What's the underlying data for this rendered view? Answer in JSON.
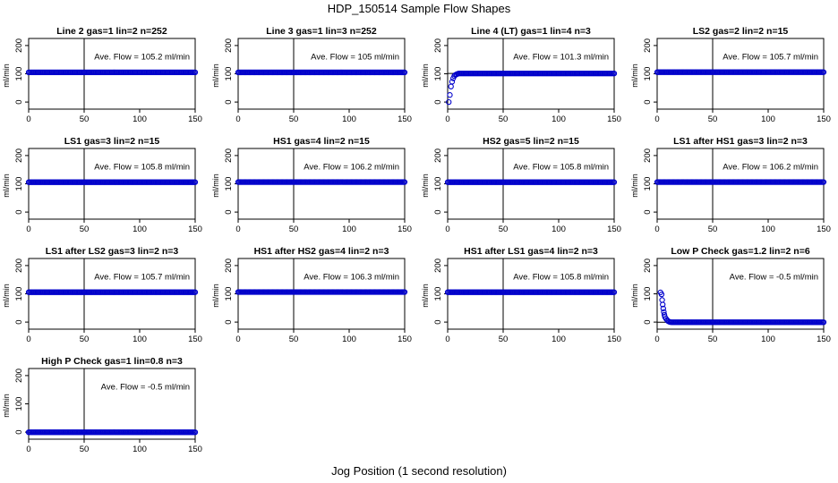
{
  "page": {
    "title": "HDP_150514  Sample Flow Shapes",
    "xlabel": "Jog Position (1 second resolution)"
  },
  "colors": {
    "points": "#0000cc",
    "axes": "#000000"
  },
  "chart_data": [
    {
      "type": "scatter",
      "title": "Line 2 gas=1 lin=2 n=252",
      "ylabel": "ml/min",
      "annotation": "Ave. Flow = 105.2  ml/min",
      "xlim": [
        0,
        150
      ],
      "ylim": [
        -25,
        225
      ],
      "xticks": [
        0,
        50,
        100,
        150
      ],
      "yticks": [
        0,
        100,
        200
      ],
      "vline": 50,
      "hline": 105.2,
      "shape": "flat",
      "level": 105.2
    },
    {
      "type": "scatter",
      "title": "Line 3 gas=1 lin=3 n=252",
      "ylabel": "ml/min",
      "annotation": "Ave. Flow = 105  ml/min",
      "xlim": [
        0,
        150
      ],
      "ylim": [
        -25,
        225
      ],
      "xticks": [
        0,
        50,
        100,
        150
      ],
      "yticks": [
        0,
        100,
        200
      ],
      "vline": 50,
      "hline": 105,
      "shape": "flat",
      "level": 105
    },
    {
      "type": "scatter",
      "title": "Line 4 (LT) gas=1 lin=4 n=3",
      "ylabel": "ml/min",
      "annotation": "Ave. Flow = 101.3  ml/min",
      "xlim": [
        0,
        150
      ],
      "ylim": [
        -25,
        225
      ],
      "xticks": [
        0,
        50,
        100,
        150
      ],
      "yticks": [
        0,
        100,
        200
      ],
      "vline": 50,
      "hline": 101.3,
      "shape": "rise",
      "level": 101.3,
      "rise_points": [
        [
          1,
          0
        ],
        [
          2,
          25
        ],
        [
          3,
          55
        ],
        [
          4,
          72
        ],
        [
          5,
          84
        ],
        [
          6,
          92
        ],
        [
          7,
          96
        ],
        [
          8,
          98
        ],
        [
          9,
          100
        ]
      ]
    },
    {
      "type": "scatter",
      "title": "LS2 gas=2 lin=2 n=15",
      "ylabel": "ml/min",
      "annotation": "Ave. Flow = 105.7  ml/min",
      "xlim": [
        0,
        150
      ],
      "ylim": [
        -25,
        225
      ],
      "xticks": [
        0,
        50,
        100,
        150
      ],
      "yticks": [
        0,
        100,
        200
      ],
      "vline": 50,
      "hline": 105.7,
      "shape": "flat",
      "level": 105.7
    },
    {
      "type": "scatter",
      "title": "LS1 gas=3 lin=2 n=15",
      "ylabel": "ml/min",
      "annotation": "Ave. Flow = 105.8  ml/min",
      "xlim": [
        0,
        150
      ],
      "ylim": [
        -25,
        225
      ],
      "xticks": [
        0,
        50,
        100,
        150
      ],
      "yticks": [
        0,
        100,
        200
      ],
      "vline": 50,
      "hline": 105.8,
      "shape": "flat",
      "level": 105.8
    },
    {
      "type": "scatter",
      "title": "HS1 gas=4 lin=2 n=15",
      "ylabel": "ml/min",
      "annotation": "Ave. Flow = 106.2  ml/min",
      "xlim": [
        0,
        150
      ],
      "ylim": [
        -25,
        225
      ],
      "xticks": [
        0,
        50,
        100,
        150
      ],
      "yticks": [
        0,
        100,
        200
      ],
      "vline": 50,
      "hline": 106.2,
      "shape": "flat",
      "level": 106.2
    },
    {
      "type": "scatter",
      "title": "HS2 gas=5 lin=2 n=15",
      "ylabel": "ml/min",
      "annotation": "Ave. Flow = 105.8  ml/min",
      "xlim": [
        0,
        150
      ],
      "ylim": [
        -25,
        225
      ],
      "xticks": [
        0,
        50,
        100,
        150
      ],
      "yticks": [
        0,
        100,
        200
      ],
      "vline": 50,
      "hline": 105.8,
      "shape": "flat",
      "level": 105.8
    },
    {
      "type": "scatter",
      "title": "LS1 after HS1 gas=3 lin=2 n=3",
      "ylabel": "ml/min",
      "annotation": "Ave. Flow = 106.2  ml/min",
      "xlim": [
        0,
        150
      ],
      "ylim": [
        -25,
        225
      ],
      "xticks": [
        0,
        50,
        100,
        150
      ],
      "yticks": [
        0,
        100,
        200
      ],
      "vline": 50,
      "hline": 106.2,
      "shape": "flat",
      "level": 106.2
    },
    {
      "type": "scatter",
      "title": "LS1 after LS2 gas=3 lin=2 n=3",
      "ylabel": "ml/min",
      "annotation": "Ave. Flow = 105.7  ml/min",
      "xlim": [
        0,
        150
      ],
      "ylim": [
        -25,
        225
      ],
      "xticks": [
        0,
        50,
        100,
        150
      ],
      "yticks": [
        0,
        100,
        200
      ],
      "vline": 50,
      "hline": 105.7,
      "shape": "flat",
      "level": 105.7
    },
    {
      "type": "scatter",
      "title": "HS1 after HS2 gas=4 lin=2 n=3",
      "ylabel": "ml/min",
      "annotation": "Ave. Flow = 106.3  ml/min",
      "xlim": [
        0,
        150
      ],
      "ylim": [
        -25,
        225
      ],
      "xticks": [
        0,
        50,
        100,
        150
      ],
      "yticks": [
        0,
        100,
        200
      ],
      "vline": 50,
      "hline": 106.3,
      "shape": "flat",
      "level": 106.3
    },
    {
      "type": "scatter",
      "title": "HS1 after LS1 gas=4 lin=2 n=3",
      "ylabel": "ml/min",
      "annotation": "Ave. Flow = 105.8  ml/min",
      "xlim": [
        0,
        150
      ],
      "ylim": [
        -25,
        225
      ],
      "xticks": [
        0,
        50,
        100,
        150
      ],
      "yticks": [
        0,
        100,
        200
      ],
      "vline": 50,
      "hline": 105.8,
      "shape": "flat",
      "level": 105.8
    },
    {
      "type": "scatter",
      "title": "Low P Check gas=1.2 lin=2 n=6",
      "ylabel": "ml/min",
      "annotation": "Ave. Flow =  -0.5  ml/min",
      "xlim": [
        0,
        150
      ],
      "ylim": [
        -25,
        225
      ],
      "xticks": [
        0,
        50,
        100,
        150
      ],
      "yticks": [
        0,
        100,
        200
      ],
      "vline": 50,
      "hline": -0.5,
      "shape": "decay",
      "level": -0.5,
      "decay_points": [
        [
          3,
          105
        ],
        [
          4,
          98
        ],
        [
          4.5,
          78
        ],
        [
          5,
          62
        ],
        [
          5.5,
          48
        ],
        [
          6,
          36
        ],
        [
          6.5,
          26
        ],
        [
          7,
          18
        ],
        [
          8,
          12
        ],
        [
          9,
          7
        ],
        [
          10,
          3
        ],
        [
          11,
          1
        ],
        [
          12,
          0
        ]
      ]
    },
    {
      "type": "scatter",
      "title": "High P Check gas=1 lin=0.8 n=3",
      "ylabel": "ml/min",
      "annotation": "Ave. Flow =  -0.5  ml/min",
      "xlim": [
        0,
        150
      ],
      "ylim": [
        -25,
        225
      ],
      "xticks": [
        0,
        50,
        100,
        150
      ],
      "yticks": [
        0,
        100,
        200
      ],
      "vline": 50,
      "hline": -0.5,
      "shape": "flat",
      "level": -0.5
    }
  ]
}
